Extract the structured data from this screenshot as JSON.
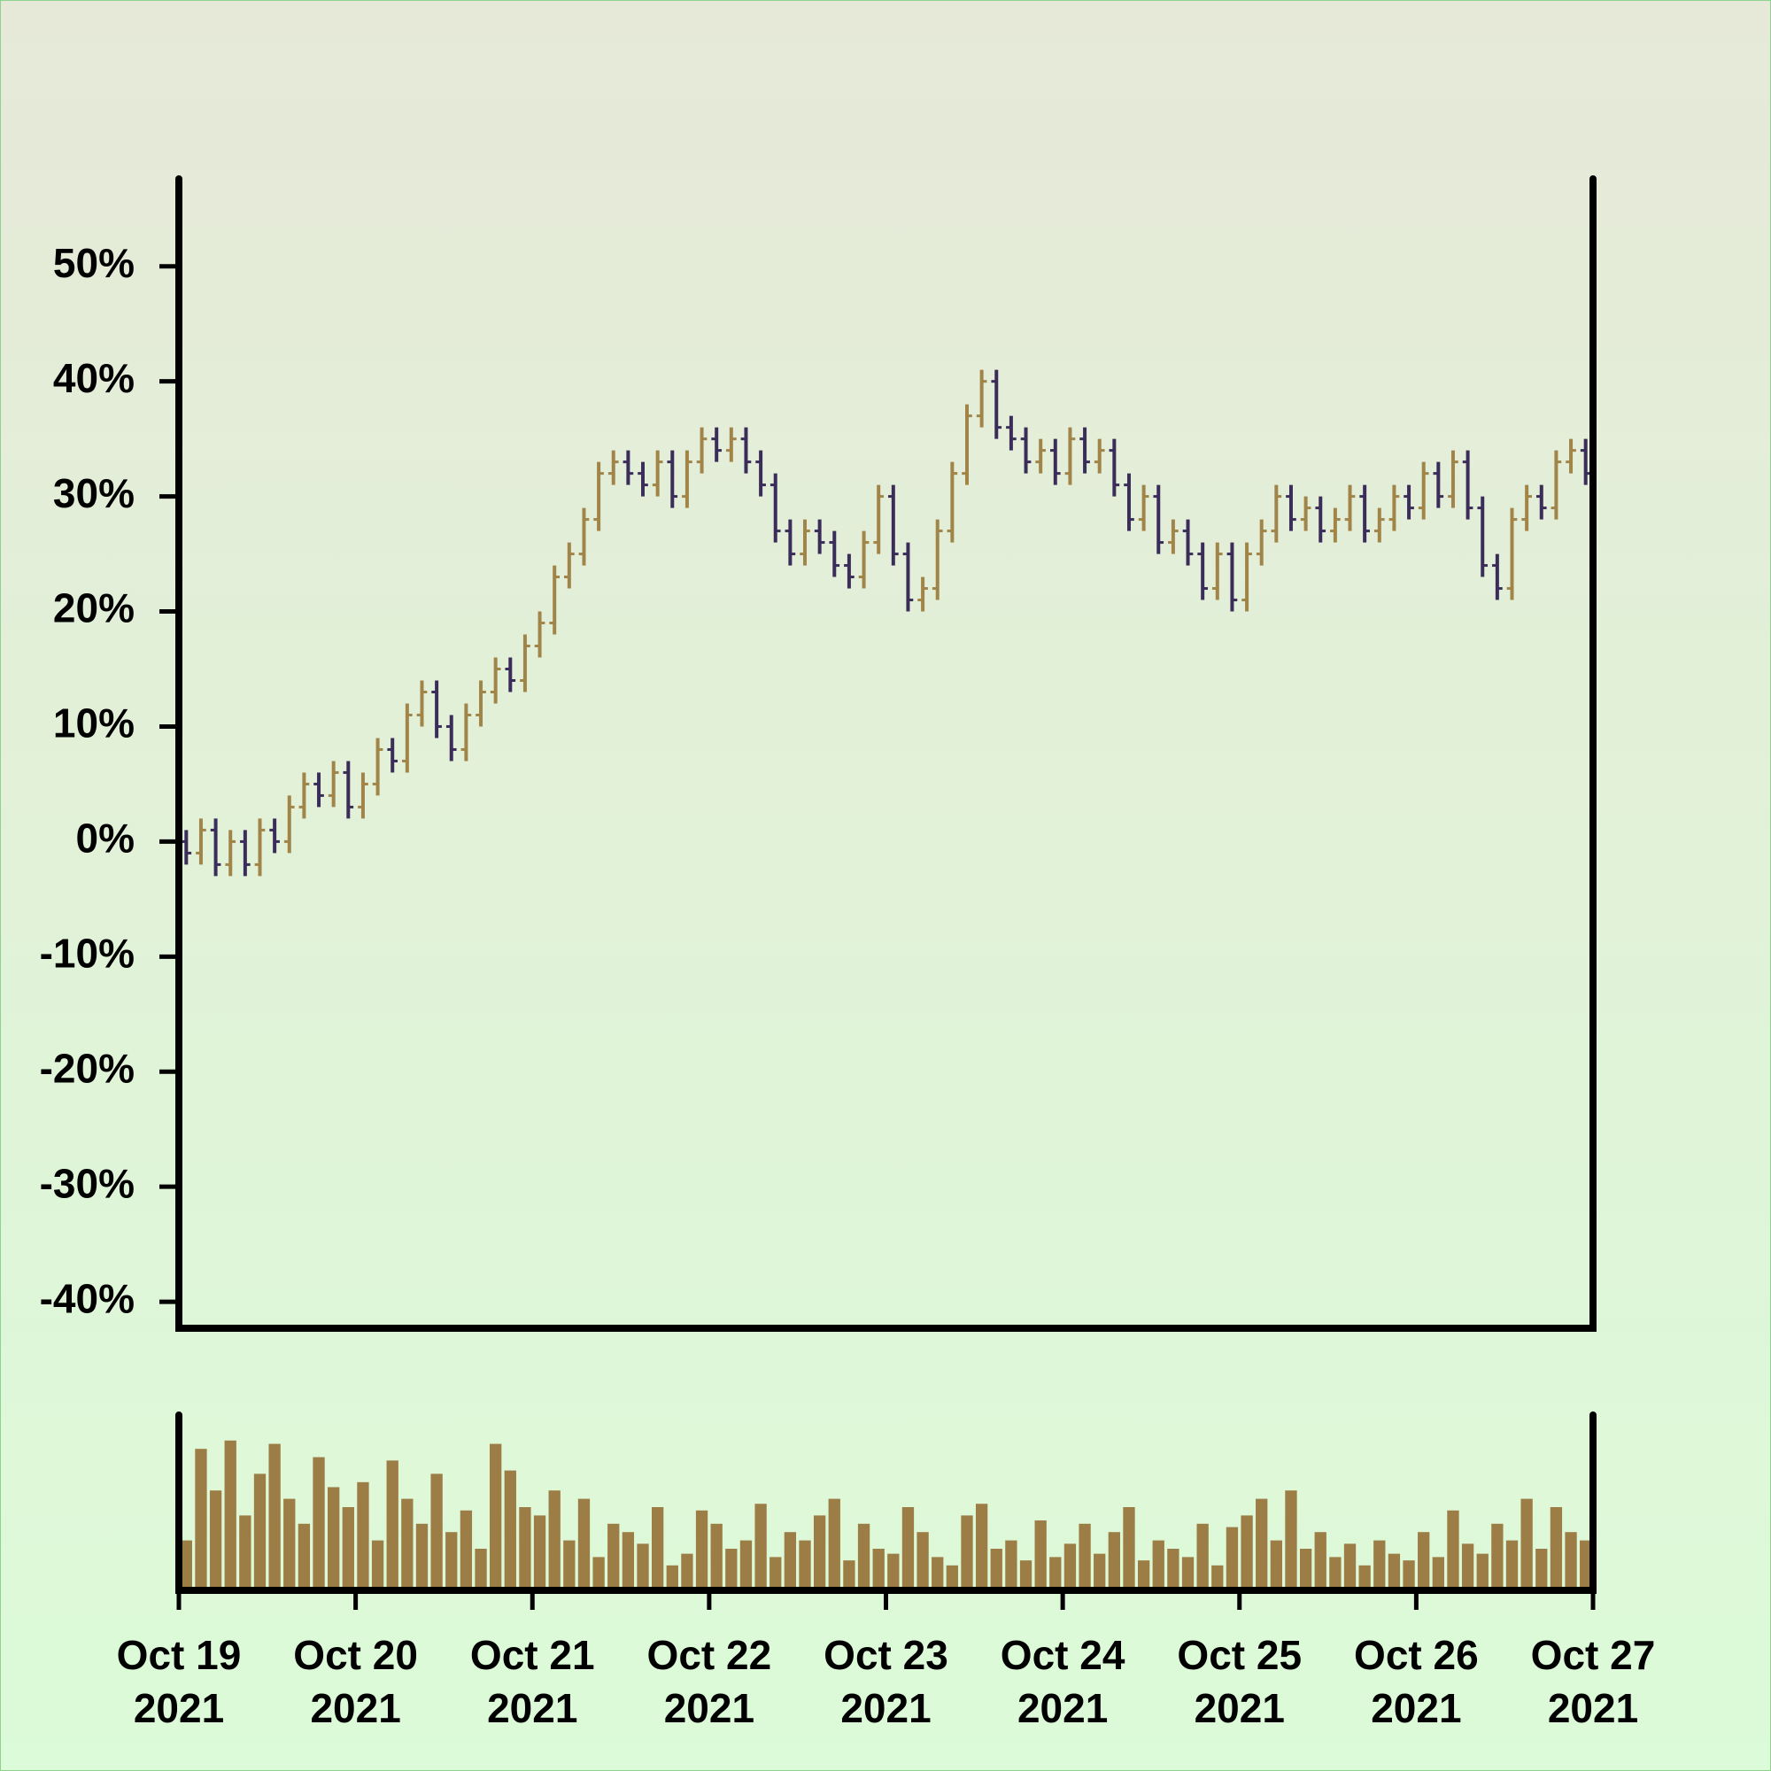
{
  "chart_data": {
    "type": "ohlc",
    "x": [
      1,
      3,
      5,
      7,
      9,
      11,
      13,
      15,
      17,
      19,
      21,
      23,
      25,
      27,
      29,
      31,
      33,
      35,
      37,
      39,
      41,
      43,
      45,
      47,
      49,
      51,
      53,
      55,
      57,
      59,
      61,
      63,
      65,
      67,
      69,
      71,
      73,
      75,
      77,
      79,
      81,
      83,
      85,
      87,
      89,
      91,
      93,
      95,
      97,
      99,
      101,
      103,
      105,
      107,
      109,
      111,
      113,
      115,
      117,
      119,
      121,
      123,
      125,
      127,
      129,
      131,
      133,
      135,
      137,
      139,
      141,
      143,
      145,
      147,
      149,
      151,
      153,
      155,
      157,
      159,
      161,
      163,
      165,
      167,
      169,
      171,
      173,
      175,
      177,
      179,
      181,
      183,
      185,
      187,
      189,
      191
    ],
    "open": [
      0,
      -1,
      1,
      -2,
      0,
      -2,
      1,
      0,
      3,
      5,
      4,
      6,
      3,
      5,
      8,
      7,
      11,
      13,
      10,
      8,
      11,
      13,
      15,
      14,
      17,
      19,
      23,
      25,
      28,
      32,
      33,
      32,
      31,
      33,
      30,
      33,
      35,
      34,
      35,
      33,
      31,
      27,
      25,
      27,
      26,
      24,
      23,
      26,
      30,
      25,
      21,
      22,
      27,
      32,
      37,
      40,
      36,
      35,
      33,
      34,
      32,
      35,
      33,
      34,
      31,
      28,
      30,
      26,
      27,
      25,
      22,
      25,
      21,
      25,
      27,
      30,
      28,
      29,
      27,
      28,
      30,
      27,
      28,
      30,
      29,
      32,
      30,
      33,
      29,
      24,
      22,
      28,
      30,
      29,
      33,
      34
    ],
    "high": [
      1,
      2,
      2,
      1,
      1,
      2,
      2,
      4,
      6,
      6,
      7,
      7,
      6,
      9,
      9,
      12,
      14,
      14,
      11,
      12,
      14,
      16,
      16,
      18,
      20,
      24,
      26,
      29,
      33,
      34,
      34,
      33,
      34,
      34,
      34,
      36,
      36,
      36,
      36,
      34,
      32,
      28,
      28,
      28,
      27,
      25,
      27,
      31,
      31,
      26,
      23,
      28,
      33,
      38,
      41,
      41,
      37,
      36,
      35,
      35,
      36,
      36,
      35,
      35,
      32,
      31,
      31,
      28,
      28,
      26,
      26,
      26,
      26,
      28,
      31,
      31,
      30,
      30,
      29,
      31,
      31,
      29,
      31,
      31,
      33,
      33,
      34,
      34,
      30,
      25,
      29,
      31,
      31,
      34,
      35,
      35
    ],
    "low": [
      -2,
      -2,
      -3,
      -3,
      -3,
      -3,
      -1,
      -1,
      2,
      3,
      3,
      2,
      2,
      4,
      6,
      6,
      10,
      9,
      7,
      7,
      10,
      12,
      13,
      13,
      16,
      18,
      22,
      24,
      27,
      31,
      31,
      30,
      30,
      29,
      29,
      32,
      33,
      33,
      32,
      30,
      26,
      24,
      24,
      25,
      23,
      22,
      22,
      25,
      24,
      20,
      20,
      21,
      26,
      31,
      36,
      35,
      34,
      32,
      32,
      31,
      31,
      32,
      32,
      30,
      27,
      27,
      25,
      25,
      24,
      21,
      21,
      20,
      20,
      24,
      26,
      27,
      27,
      26,
      26,
      27,
      26,
      26,
      27,
      28,
      28,
      29,
      29,
      28,
      23,
      21,
      21,
      27,
      28,
      28,
      32,
      31
    ],
    "close": [
      -1,
      1,
      -2,
      0,
      -2,
      1,
      0,
      3,
      5,
      4,
      6,
      3,
      5,
      8,
      7,
      11,
      13,
      10,
      8,
      11,
      13,
      15,
      14,
      17,
      19,
      23,
      25,
      28,
      32,
      33,
      32,
      31,
      33,
      30,
      33,
      35,
      34,
      35,
      33,
      31,
      27,
      25,
      27,
      26,
      24,
      23,
      26,
      30,
      25,
      21,
      22,
      27,
      32,
      37,
      40,
      36,
      35,
      33,
      34,
      32,
      35,
      33,
      34,
      31,
      28,
      30,
      26,
      27,
      25,
      22,
      25,
      21,
      25,
      27,
      30,
      28,
      29,
      27,
      28,
      30,
      27,
      28,
      30,
      29,
      32,
      30,
      33,
      29,
      24,
      22,
      28,
      30,
      29,
      33,
      34,
      32
    ],
    "volume": [
      30,
      85,
      60,
      90,
      45,
      70,
      88,
      55,
      40,
      80,
      62,
      50,
      65,
      30,
      78,
      55,
      40,
      70,
      35,
      48,
      25,
      88,
      72,
      50,
      45,
      60,
      30,
      55,
      20,
      40,
      35,
      28,
      50,
      15,
      22,
      48,
      40,
      25,
      30,
      52,
      20,
      35,
      30,
      45,
      55,
      18,
      40,
      25,
      22,
      50,
      35,
      20,
      15,
      45,
      52,
      25,
      30,
      18,
      42,
      20,
      28,
      40,
      22,
      35,
      50,
      18,
      30,
      25,
      20,
      40,
      15,
      38,
      45,
      55,
      30,
      60,
      25,
      35,
      20,
      28,
      15,
      30,
      22,
      18,
      35,
      20,
      48,
      28,
      22,
      40,
      30,
      55,
      25,
      50,
      35,
      30
    ],
    "xlim": [
      0,
      192
    ],
    "xticks": [
      {
        "value": 0,
        "label": "Oct 19\n2021"
      },
      {
        "value": 24,
        "label": "Oct 20\n2021"
      },
      {
        "value": 48,
        "label": "Oct 21\n2021"
      },
      {
        "value": 72,
        "label": "Oct 22\n2021"
      },
      {
        "value": 96,
        "label": "Oct 23\n2021"
      },
      {
        "value": 120,
        "label": "Oct 24\n2021"
      },
      {
        "value": 144,
        "label": "Oct 25\n2021"
      },
      {
        "value": 168,
        "label": "Oct 26\n2021"
      },
      {
        "value": 192,
        "label": "Oct 27\n2021"
      }
    ],
    "ylim": [
      -42.3,
      57.6
    ],
    "yticks": [
      {
        "value": -40,
        "label": "-40%"
      },
      {
        "value": -30,
        "label": "-30%"
      },
      {
        "value": -20,
        "label": "-20%"
      },
      {
        "value": -10,
        "label": "-10%"
      },
      {
        "value": 0,
        "label": "0%"
      },
      {
        "value": 10,
        "label": "10%"
      },
      {
        "value": 20,
        "label": "20%"
      },
      {
        "value": 30,
        "label": "30%"
      },
      {
        "value": 40,
        "label": "40%"
      },
      {
        "value": 50,
        "label": "50%"
      }
    ],
    "volume_ylim": [
      0,
      100
    ],
    "up_color": "#a08448",
    "down_color": "#3b2d5a",
    "volume_color": "#9c7d45"
  }
}
